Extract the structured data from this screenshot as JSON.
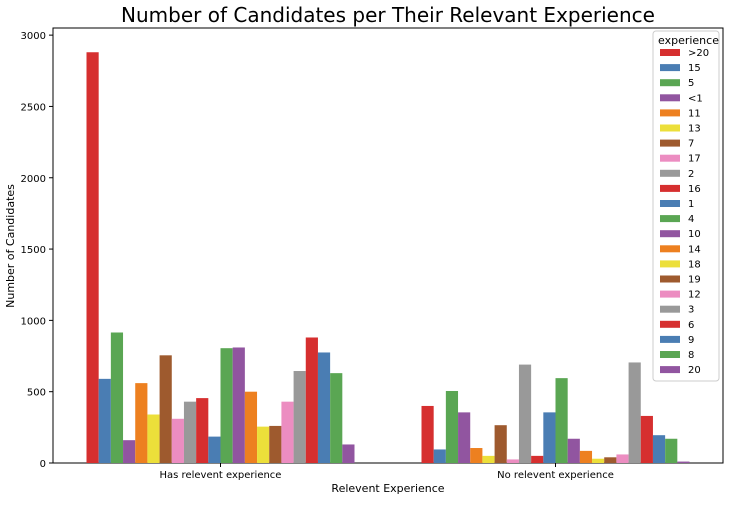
{
  "chart_data": {
    "type": "bar",
    "title": "Number of Candidates per Their Relevant Experience",
    "xlabel": "Relevent Experience",
    "ylabel": "Number of Candidates",
    "categories": [
      "Has relevent experience",
      "No relevent experience"
    ],
    "ylim": [
      0,
      3050
    ],
    "yticks": [
      "0",
      "500",
      "1000",
      "1500",
      "2000",
      "2500",
      "3000"
    ],
    "grid": false,
    "legend": {
      "title": "experience",
      "placement": "top-right"
    },
    "series": [
      {
        "name": ">20",
        "color": "#d62f2f",
        "values": [
          2880,
          400
        ]
      },
      {
        "name": "15",
        "color": "#4a7db3",
        "values": [
          590,
          95
        ]
      },
      {
        "name": "5",
        "color": "#5aa653",
        "values": [
          915,
          505
        ]
      },
      {
        "name": "<1",
        "color": "#9155a0",
        "values": [
          160,
          355
        ]
      },
      {
        "name": "11",
        "color": "#ed8020",
        "values": [
          560,
          105
        ]
      },
      {
        "name": "13",
        "color": "#ecdf3a",
        "values": [
          340,
          50
        ]
      },
      {
        "name": "7",
        "color": "#9e5a2e",
        "values": [
          755,
          265
        ]
      },
      {
        "name": "17",
        "color": "#ec8dc1",
        "values": [
          310,
          25
        ]
      },
      {
        "name": "2",
        "color": "#999999",
        "values": [
          430,
          690
        ]
      },
      {
        "name": "16",
        "color": "#d62f2f",
        "values": [
          455,
          50
        ]
      },
      {
        "name": "1",
        "color": "#4a7db3",
        "values": [
          185,
          355
        ]
      },
      {
        "name": "4",
        "color": "#5aa653",
        "values": [
          805,
          595
        ]
      },
      {
        "name": "10",
        "color": "#9155a0",
        "values": [
          810,
          170
        ]
      },
      {
        "name": "14",
        "color": "#ed8020",
        "values": [
          500,
          85
        ]
      },
      {
        "name": "18",
        "color": "#ecdf3a",
        "values": [
          255,
          30
        ]
      },
      {
        "name": "19",
        "color": "#9e5a2e",
        "values": [
          260,
          40
        ]
      },
      {
        "name": "12",
        "color": "#ec8dc1",
        "values": [
          430,
          60
        ]
      },
      {
        "name": "3",
        "color": "#999999",
        "values": [
          645,
          705
        ]
      },
      {
        "name": "6",
        "color": "#d62f2f",
        "values": [
          880,
          330
        ]
      },
      {
        "name": "9",
        "color": "#4a7db3",
        "values": [
          775,
          195
        ]
      },
      {
        "name": "8",
        "color": "#5aa653",
        "values": [
          630,
          170
        ]
      },
      {
        "name": "20",
        "color": "#9155a0",
        "values": [
          130,
          10
        ]
      }
    ]
  }
}
